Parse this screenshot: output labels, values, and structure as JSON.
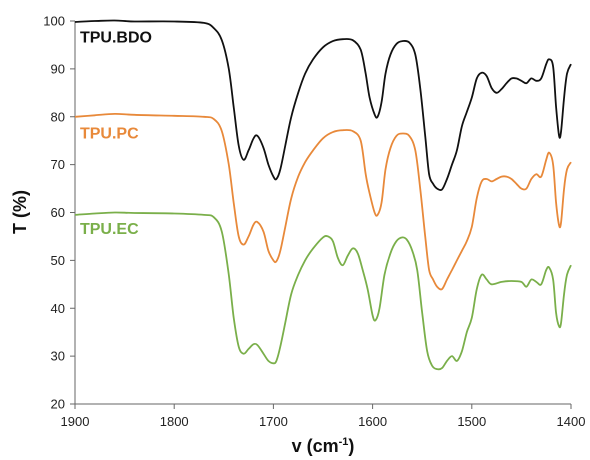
{
  "chart_data": {
    "type": "line",
    "xlabel": "v (cm",
    "xlabel_sup": "-1",
    "xlabel_close": ")",
    "ylabel": "T (%)",
    "xlim": [
      1900,
      1400
    ],
    "ylim": [
      20,
      100
    ],
    "x_reversed": true,
    "grid": false,
    "x_ticks": [
      1900,
      1800,
      1700,
      1600,
      1500,
      1400
    ],
    "y_ticks": [
      20,
      30,
      40,
      50,
      60,
      70,
      80,
      90,
      100
    ],
    "colors": {
      "TPU.BDO": "#111111",
      "TPU.PC": "#E8893A",
      "TPU.EC": "#7AAF4A"
    },
    "series": [
      {
        "name": "TPU.BDO",
        "label_pos": [
          1895,
          95.5
        ],
        "points": [
          [
            1900,
            99.8
          ],
          [
            1880,
            100
          ],
          [
            1860,
            100.1
          ],
          [
            1840,
            99.9
          ],
          [
            1800,
            99.9
          ],
          [
            1770,
            99.6
          ],
          [
            1760,
            98.5
          ],
          [
            1752,
            96
          ],
          [
            1745,
            90
          ],
          [
            1740,
            82
          ],
          [
            1735,
            74
          ],
          [
            1730,
            71
          ],
          [
            1725,
            73
          ],
          [
            1720,
            75.5
          ],
          [
            1716,
            76
          ],
          [
            1710,
            73.5
          ],
          [
            1705,
            70
          ],
          [
            1700,
            67.5
          ],
          [
            1697,
            67
          ],
          [
            1693,
            69
          ],
          [
            1688,
            74
          ],
          [
            1682,
            80
          ],
          [
            1675,
            85
          ],
          [
            1668,
            89
          ],
          [
            1660,
            92
          ],
          [
            1650,
            94.5
          ],
          [
            1640,
            95.8
          ],
          [
            1630,
            96.2
          ],
          [
            1620,
            96
          ],
          [
            1612,
            94
          ],
          [
            1607,
            89
          ],
          [
            1603,
            84
          ],
          [
            1598,
            80.5
          ],
          [
            1595,
            80
          ],
          [
            1591,
            83
          ],
          [
            1587,
            89
          ],
          [
            1582,
            93
          ],
          [
            1576,
            95.2
          ],
          [
            1570,
            95.8
          ],
          [
            1563,
            95.5
          ],
          [
            1557,
            93
          ],
          [
            1552,
            86
          ],
          [
            1547,
            76
          ],
          [
            1543,
            68
          ],
          [
            1539,
            66
          ],
          [
            1535,
            65
          ],
          [
            1530,
            64.8
          ],
          [
            1525,
            67
          ],
          [
            1520,
            70
          ],
          [
            1515,
            73
          ],
          [
            1510,
            78
          ],
          [
            1505,
            81
          ],
          [
            1500,
            84
          ],
          [
            1495,
            88
          ],
          [
            1490,
            89.2
          ],
          [
            1485,
            88.5
          ],
          [
            1480,
            86
          ],
          [
            1475,
            85
          ],
          [
            1470,
            85.8
          ],
          [
            1465,
            87
          ],
          [
            1460,
            88
          ],
          [
            1455,
            88
          ],
          [
            1450,
            87.5
          ],
          [
            1445,
            87
          ],
          [
            1440,
            88
          ],
          [
            1435,
            87.5
          ],
          [
            1430,
            88
          ],
          [
            1425,
            91
          ],
          [
            1422,
            92
          ],
          [
            1418,
            90.5
          ],
          [
            1415,
            82
          ],
          [
            1412,
            76
          ],
          [
            1410,
            77
          ],
          [
            1407,
            84
          ],
          [
            1404,
            89
          ],
          [
            1400,
            91
          ]
        ]
      },
      {
        "name": "TPU.PC",
        "label_pos": [
          1895,
          75.5
        ],
        "points": [
          [
            1900,
            80
          ],
          [
            1880,
            80.3
          ],
          [
            1860,
            80.6
          ],
          [
            1840,
            80.4
          ],
          [
            1800,
            80.2
          ],
          [
            1770,
            80
          ],
          [
            1760,
            79.5
          ],
          [
            1752,
            77
          ],
          [
            1745,
            70
          ],
          [
            1740,
            62
          ],
          [
            1735,
            55
          ],
          [
            1730,
            53.3
          ],
          [
            1725,
            55
          ],
          [
            1720,
            57.5
          ],
          [
            1716,
            58
          ],
          [
            1710,
            56
          ],
          [
            1705,
            52
          ],
          [
            1700,
            50
          ],
          [
            1697,
            49.8
          ],
          [
            1693,
            52
          ],
          [
            1688,
            57
          ],
          [
            1682,
            63
          ],
          [
            1675,
            67.5
          ],
          [
            1668,
            70.5
          ],
          [
            1660,
            73
          ],
          [
            1650,
            75.5
          ],
          [
            1640,
            76.8
          ],
          [
            1630,
            77.2
          ],
          [
            1620,
            77
          ],
          [
            1612,
            75
          ],
          [
            1607,
            68
          ],
          [
            1603,
            64
          ],
          [
            1598,
            60
          ],
          [
            1595,
            59.5
          ],
          [
            1591,
            62
          ],
          [
            1587,
            69
          ],
          [
            1582,
            73.5
          ],
          [
            1576,
            76
          ],
          [
            1570,
            76.5
          ],
          [
            1563,
            76
          ],
          [
            1557,
            73
          ],
          [
            1552,
            65
          ],
          [
            1547,
            55
          ],
          [
            1543,
            48
          ],
          [
            1539,
            46
          ],
          [
            1535,
            44.5
          ],
          [
            1530,
            44
          ],
          [
            1525,
            46
          ],
          [
            1520,
            48
          ],
          [
            1515,
            50
          ],
          [
            1510,
            52
          ],
          [
            1505,
            54
          ],
          [
            1500,
            57
          ],
          [
            1495,
            63
          ],
          [
            1490,
            66.5
          ],
          [
            1485,
            67
          ],
          [
            1480,
            66.5
          ],
          [
            1475,
            67
          ],
          [
            1470,
            67.5
          ],
          [
            1465,
            67.5
          ],
          [
            1460,
            67
          ],
          [
            1455,
            66
          ],
          [
            1450,
            65
          ],
          [
            1445,
            65
          ],
          [
            1440,
            67
          ],
          [
            1435,
            68
          ],
          [
            1430,
            67.5
          ],
          [
            1425,
            71
          ],
          [
            1422,
            72.5
          ],
          [
            1418,
            70
          ],
          [
            1415,
            62
          ],
          [
            1412,
            57.3
          ],
          [
            1410,
            58
          ],
          [
            1407,
            65
          ],
          [
            1404,
            69
          ],
          [
            1400,
            70.5
          ]
        ]
      },
      {
        "name": "TPU.EC",
        "label_pos": [
          1895,
          55.5
        ],
        "points": [
          [
            1900,
            59.5
          ],
          [
            1880,
            59.8
          ],
          [
            1860,
            60
          ],
          [
            1840,
            59.9
          ],
          [
            1800,
            59.8
          ],
          [
            1770,
            59.5
          ],
          [
            1760,
            59
          ],
          [
            1752,
            56
          ],
          [
            1745,
            47
          ],
          [
            1740,
            38
          ],
          [
            1735,
            32
          ],
          [
            1730,
            30.5
          ],
          [
            1725,
            31.5
          ],
          [
            1720,
            32.5
          ],
          [
            1716,
            32.3
          ],
          [
            1710,
            30.5
          ],
          [
            1705,
            29
          ],
          [
            1700,
            28.5
          ],
          [
            1697,
            29
          ],
          [
            1693,
            32
          ],
          [
            1688,
            37
          ],
          [
            1682,
            43
          ],
          [
            1675,
            47
          ],
          [
            1668,
            50
          ],
          [
            1660,
            52.5
          ],
          [
            1650,
            54.8
          ],
          [
            1645,
            55
          ],
          [
            1640,
            54
          ],
          [
            1635,
            50.5
          ],
          [
            1630,
            49
          ],
          [
            1625,
            51
          ],
          [
            1620,
            52.5
          ],
          [
            1615,
            51.5
          ],
          [
            1610,
            48
          ],
          [
            1605,
            44
          ],
          [
            1600,
            38.5
          ],
          [
            1597,
            37.5
          ],
          [
            1593,
            40
          ],
          [
            1588,
            47
          ],
          [
            1582,
            51.5
          ],
          [
            1576,
            54
          ],
          [
            1570,
            54.8
          ],
          [
            1565,
            54.2
          ],
          [
            1560,
            52
          ],
          [
            1555,
            48
          ],
          [
            1550,
            39
          ],
          [
            1545,
            31
          ],
          [
            1540,
            28
          ],
          [
            1535,
            27.3
          ],
          [
            1530,
            27.5
          ],
          [
            1525,
            29
          ],
          [
            1520,
            30
          ],
          [
            1515,
            29
          ],
          [
            1510,
            31
          ],
          [
            1505,
            35
          ],
          [
            1500,
            38
          ],
          [
            1495,
            44
          ],
          [
            1490,
            47
          ],
          [
            1485,
            46
          ],
          [
            1480,
            45
          ],
          [
            1470,
            45.5
          ],
          [
            1460,
            45.7
          ],
          [
            1450,
            45.5
          ],
          [
            1445,
            44.5
          ],
          [
            1440,
            46
          ],
          [
            1435,
            45.5
          ],
          [
            1430,
            45
          ],
          [
            1425,
            48
          ],
          [
            1422,
            48.5
          ],
          [
            1418,
            46
          ],
          [
            1415,
            39
          ],
          [
            1412,
            36.2
          ],
          [
            1410,
            37
          ],
          [
            1407,
            43
          ],
          [
            1404,
            47
          ],
          [
            1400,
            49
          ]
        ]
      }
    ]
  }
}
